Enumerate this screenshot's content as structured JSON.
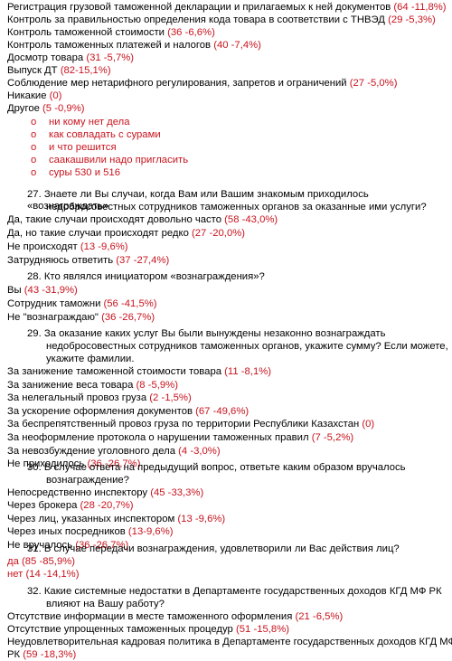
{
  "block1": [
    {
      "text": "Регистрация грузовой таможенной декларации и прилагаемых к ней документов ",
      "val": "(64   -11,8%)"
    },
    {
      "text": "Контроль за правильностью определения кода товара в соответствии с ТНВЭД ",
      "val": "(29    -5,3%)"
    },
    {
      "text": "Контроль таможенной стоимости ",
      "val": "(36           -6,6%)"
    },
    {
      "text": "Контроль таможенных платежей и налогов ",
      "val": "(40      -7,4%)"
    },
    {
      "text": "Досмотр товара ",
      "val": "(31   -5,7%)"
    },
    {
      "text": "Выпуск ДТ ",
      "val": "(82-15,1%)"
    },
    {
      "text": "Соблюдение мер нетарифного регулирования, запретов и ограничений ",
      "val": "(27        -5,0%)"
    },
    {
      "text": "Никакие ",
      "val": "(0)"
    },
    {
      "text": "Другое ",
      "val": "(5 -0,9%)"
    }
  ],
  "other_items": [
    "ни кому нет дела",
    "как совладать с сурами",
    "и что решится",
    "саакашвили надо пригласить",
    "суры 530 и 516"
  ],
  "bullet_glyph": "o",
  "q27": {
    "title_1": "27. Знаете ли Вы случаи, когда Вам или Вашим знакомым приходилось «вознаграждать»",
    "title_2": "недобросовестных сотрудников таможенных органов за оказанные ими услуги?",
    "answers": [
      {
        "text": "Да, такие случаи происходят довольно часто ",
        "val": "(58  -43,0%)"
      },
      {
        "text": "Да, но такие случаи происходят редко ",
        "val": "(27  -20,0%)"
      },
      {
        "text": "Не происходят ",
        "val": "(13     -9,6%)"
      },
      {
        "text": "Затрудняюсь ответить ",
        "val": "(37     -27,4%)"
      }
    ]
  },
  "q28": {
    "title_1": "28. Кто являлся инициатором «вознаграждения»?",
    "answers": [
      {
        "text": "Вы ",
        "val": "(43 -31,9%)"
      },
      {
        "text": "Сотрудник таможни ",
        "val": "(56 -41,5%)"
      },
      {
        "text": "Не \"вознаграждаю\" ",
        "val": "(36  -26,7%)"
      }
    ]
  },
  "q29": {
    "title_1": "29. За оказание каких услуг Вы были вынуждены незаконно вознаграждать",
    "title_2": "недобросовестных сотрудников таможенных органов, укажите сумму? Если можете,",
    "title_3": "укажите фамилии.",
    "answers": [
      {
        "text": "За занижение таможенной стоимости товара ",
        "val": "(11   -8,1%)"
      },
      {
        "text": "За занижение веса товара ",
        "val": "(8           -5,9%)"
      },
      {
        "text": "За нелегальный провоз груза ",
        "val": "(2         -1,5%)"
      },
      {
        "text": "За ускорение оформления документов ",
        "val": "(67 -49,6%)"
      },
      {
        "text": "За беспрепятственный провоз груза по территории Республики Казахстан ",
        "val": "(0)"
      },
      {
        "text": "За неоформление протокола о нарушении таможенных правил ",
        "val": "(7  -5,2%)"
      },
      {
        "text": "За невозбуждение уголовного дела ",
        "val": "(4          -3,0%)"
      },
      {
        "text": "Не приходилось ",
        "val": "(36  -26,7%)"
      }
    ]
  },
  "q30": {
    "title_1": "30. В случае ответа на предыдущий вопрос, ответьте каким образом вручалось",
    "title_2": "вознаграждение?",
    "answers": [
      {
        "text": "Непосредственно инспектору ",
        "val": "(45      -33,3%)"
      },
      {
        "text": "Через брокера ",
        "val": "(28      -20,7%)"
      },
      {
        "text": "Через лиц, указанных инспектором ",
        "val": "(13         -9,6%)"
      },
      {
        "text": "Через иных посредников ",
        "val": "(13-9,6%)"
      },
      {
        "text": "Не вручалось ",
        "val": "(36       -26,7%)"
      }
    ]
  },
  "q31": {
    "title_1": "31. В случае передачи  вознаграждения, удовлетворили ли Вас действия лиц?",
    "answers": [
      {
        "text": "",
        "val": "да  (85 -85,9%)"
      },
      {
        "text": "",
        "val": "нет (14 -14,1%)"
      }
    ]
  },
  "q32": {
    "title_1": "32. Какие системные недостатки в Департаменте государственных доходов КГД МФ РК",
    "title_2": "влияют на Вашу работу?",
    "answers": [
      {
        "text": "Отсутствие информации в месте таможенного оформления ",
        "val": "(21  -6,5%)"
      },
      {
        "text": "Отсутствие упрощенных таможенных процедур ",
        "val": "(51            -15,8%)"
      },
      {
        "text": "Неудовлетворительная кадровая политика в Департаменте государственных доходов КГД МФ",
        "val": ""
      },
      {
        "text": "РК ",
        "val": "(59 -18,3%)"
      }
    ]
  }
}
